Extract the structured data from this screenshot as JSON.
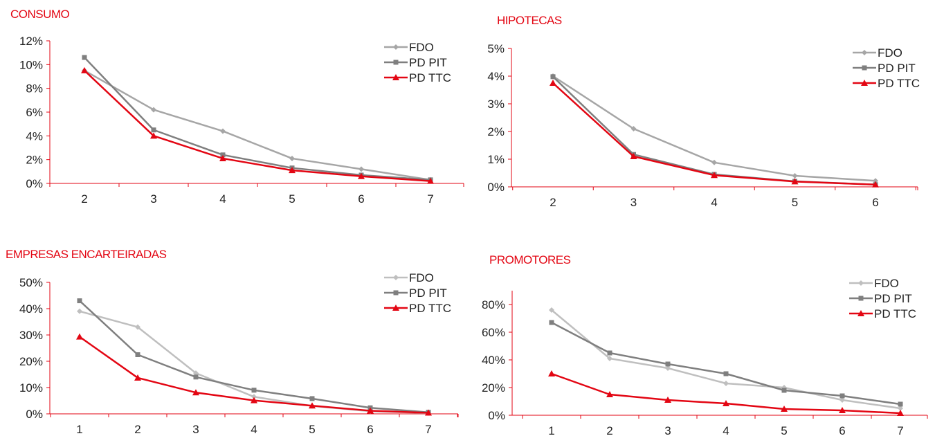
{
  "colors": {
    "axis": "#e30613",
    "title": "#e30613",
    "tick_text": "#222222"
  },
  "chart_data": [
    {
      "id": "consumo",
      "type": "line",
      "title": "CONSUMO",
      "xlabel": "",
      "ylabel": "",
      "x": [
        "2",
        "3",
        "4",
        "5",
        "6",
        "7"
      ],
      "ylim": [
        0,
        0.12
      ],
      "yticks": [
        0,
        0.02,
        0.04,
        0.06,
        0.08,
        0.1,
        0.12
      ],
      "ytick_labels": [
        "0%",
        "2%",
        "4%",
        "6%",
        "8%",
        "10%",
        "12%"
      ],
      "legend_position": "top-right",
      "grid": false,
      "series": [
        {
          "name": "FDO",
          "color": "#a6a6a6",
          "marker": "diamond",
          "values": [
            0.095,
            0.062,
            0.044,
            0.021,
            0.012,
            0.003
          ]
        },
        {
          "name": "PD PIT",
          "color": "#7f7f7f",
          "marker": "square",
          "values": [
            0.106,
            0.045,
            0.024,
            0.013,
            0.007,
            0.003
          ]
        },
        {
          "name": "PD TTC",
          "color": "#e30613",
          "marker": "triangle",
          "values": [
            0.095,
            0.04,
            0.021,
            0.011,
            0.006,
            0.002
          ]
        }
      ]
    },
    {
      "id": "hipotecas",
      "type": "line",
      "title": "HIPOTECAS",
      "xlabel": "",
      "ylabel": "",
      "x": [
        "2",
        "3",
        "4",
        "5",
        "6"
      ],
      "ylim": [
        0,
        0.05
      ],
      "yticks": [
        0,
        0.01,
        0.02,
        0.03,
        0.04,
        0.05
      ],
      "ytick_labels": [
        "0%",
        "1%",
        "2%",
        "3%",
        "4%",
        "5%"
      ],
      "legend_position": "top-right",
      "grid": false,
      "series": [
        {
          "name": "FDO",
          "color": "#a6a6a6",
          "marker": "diamond",
          "values": [
            0.04,
            0.021,
            0.0088,
            0.004,
            0.0022
          ]
        },
        {
          "name": "PD PIT",
          "color": "#7f7f7f",
          "marker": "square",
          "values": [
            0.0398,
            0.0117,
            0.0045,
            0.002,
            0.0008
          ]
        },
        {
          "name": "PD TTC",
          "color": "#e30613",
          "marker": "triangle",
          "values": [
            0.0375,
            0.011,
            0.0042,
            0.0019,
            0.0008
          ]
        }
      ]
    },
    {
      "id": "empresas",
      "type": "line",
      "title": "EMPRESAS ENCARTEIRADAS",
      "xlabel": "",
      "ylabel": "",
      "x": [
        "1",
        "2",
        "3",
        "4",
        "5",
        "6",
        "7"
      ],
      "ylim": [
        0,
        0.5
      ],
      "yticks": [
        0,
        0.1,
        0.2,
        0.3,
        0.4,
        0.5
      ],
      "ytick_labels": [
        "0%",
        "10%",
        "20%",
        "30%",
        "40%",
        "50%"
      ],
      "legend_position": "top-right",
      "grid": false,
      "series": [
        {
          "name": "FDO",
          "color": "#bfbfbf",
          "marker": "diamond",
          "values": [
            0.39,
            0.33,
            0.155,
            0.065,
            0.03,
            0.01,
            0.003
          ]
        },
        {
          "name": "PD PIT",
          "color": "#7f7f7f",
          "marker": "square",
          "values": [
            0.43,
            0.225,
            0.14,
            0.09,
            0.058,
            0.023,
            0.006
          ]
        },
        {
          "name": "PD TTC",
          "color": "#e30613",
          "marker": "triangle",
          "values": [
            0.293,
            0.137,
            0.081,
            0.051,
            0.031,
            0.012,
            0.004
          ]
        }
      ]
    },
    {
      "id": "promotores",
      "type": "line",
      "title": "PROMOTORES",
      "xlabel": "",
      "ylabel": "",
      "x": [
        "1",
        "2",
        "3",
        "4",
        "5",
        "6",
        "7"
      ],
      "ylim": [
        0,
        0.9
      ],
      "yticks": [
        0,
        0.2,
        0.4,
        0.6,
        0.8
      ],
      "ytick_labels": [
        "0%",
        "20%",
        "40%",
        "60%",
        "80%"
      ],
      "legend_position": "top-right",
      "grid": false,
      "series": [
        {
          "name": "FDO",
          "color": "#bfbfbf",
          "marker": "diamond",
          "values": [
            0.76,
            0.41,
            0.34,
            0.23,
            0.2,
            0.11,
            0.05
          ]
        },
        {
          "name": "PD PIT",
          "color": "#7f7f7f",
          "marker": "square",
          "values": [
            0.67,
            0.45,
            0.37,
            0.3,
            0.18,
            0.14,
            0.08
          ]
        },
        {
          "name": "PD TTC",
          "color": "#e30613",
          "marker": "triangle",
          "values": [
            0.3,
            0.15,
            0.11,
            0.085,
            0.045,
            0.035,
            0.015
          ]
        }
      ]
    }
  ]
}
